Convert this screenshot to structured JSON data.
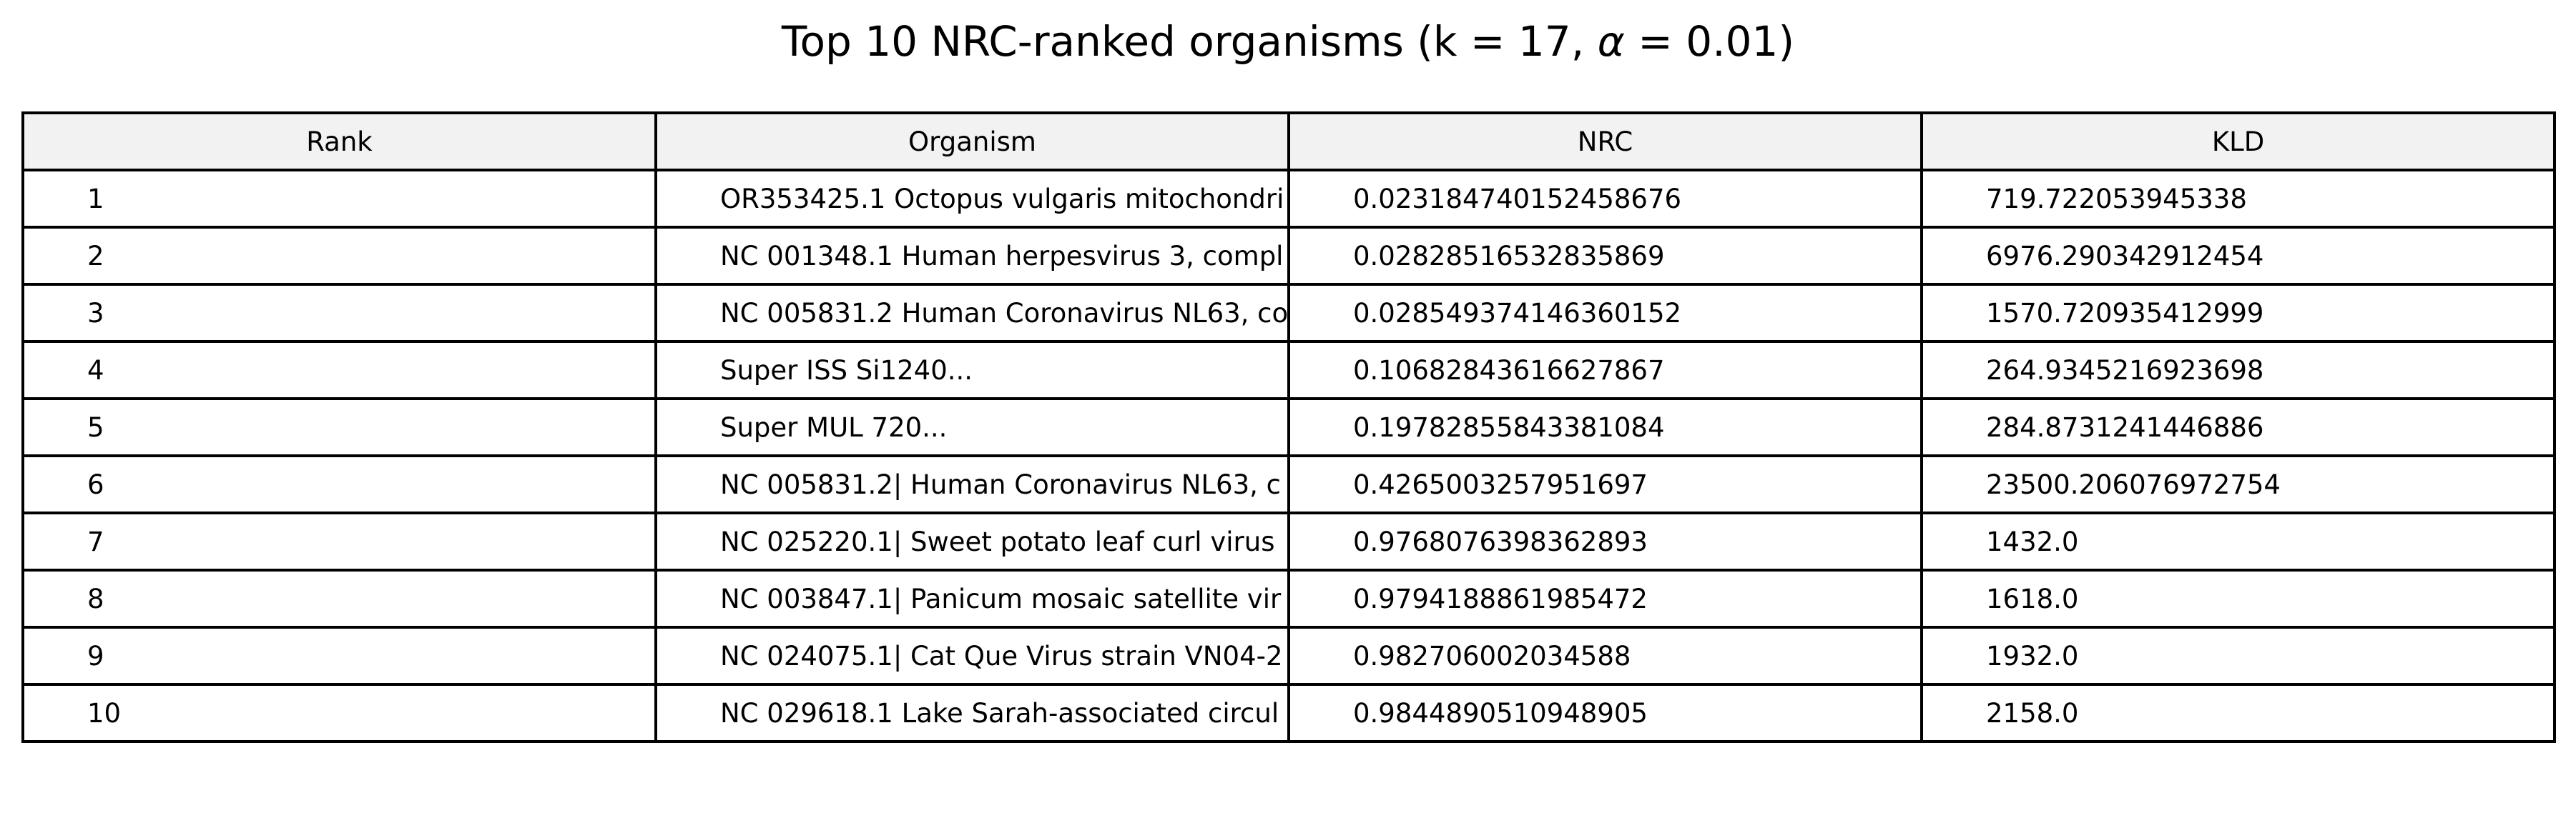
{
  "chart_data": {
    "type": "table",
    "title": {
      "prefix": "Top 10 NRC-ranked organisms (k = 17, ",
      "alpha": "α",
      "suffix": " = 0.01)"
    },
    "columns": [
      "Rank",
      "Organism",
      "NRC",
      "KLD"
    ],
    "rows": [
      [
        "1",
        "OR353425.1 Octopus vulgaris mitochondri",
        "0.023184740152458676",
        "719.722053945338"
      ],
      [
        "2",
        "NC 001348.1 Human herpesvirus 3, compl",
        "0.02828516532835869",
        "6976.290342912454"
      ],
      [
        "3",
        "NC 005831.2 Human Coronavirus NL63, co",
        "0.028549374146360152",
        "1570.720935412999"
      ],
      [
        "4",
        "Super ISS Si1240...",
        "0.10682843616627867",
        "264.9345216923698"
      ],
      [
        "5",
        "Super MUL 720...",
        "0.19782855843381084",
        "284.8731241446886"
      ],
      [
        "6",
        "NC 005831.2| Human Coronavirus NL63, c",
        "0.4265003257951697",
        "23500.206076972754"
      ],
      [
        "7",
        "NC 025220.1| Sweet potato leaf curl virus",
        "0.9768076398362893",
        "1432.0"
      ],
      [
        "8",
        "NC 003847.1| Panicum mosaic satellite vir",
        "0.9794188861985472",
        "1618.0"
      ],
      [
        "9",
        "NC 024075.1| Cat Que Virus strain VN04-2",
        "0.982706002034588",
        "1932.0"
      ],
      [
        "10",
        "NC 029618.1 Lake Sarah-associated circul",
        "0.9844890510948905",
        "2158.0"
      ]
    ],
    "colors": {
      "header_background": "#f2f2f2",
      "cell_background": "#ffffff",
      "border": "#000000",
      "text": "#000000"
    }
  }
}
